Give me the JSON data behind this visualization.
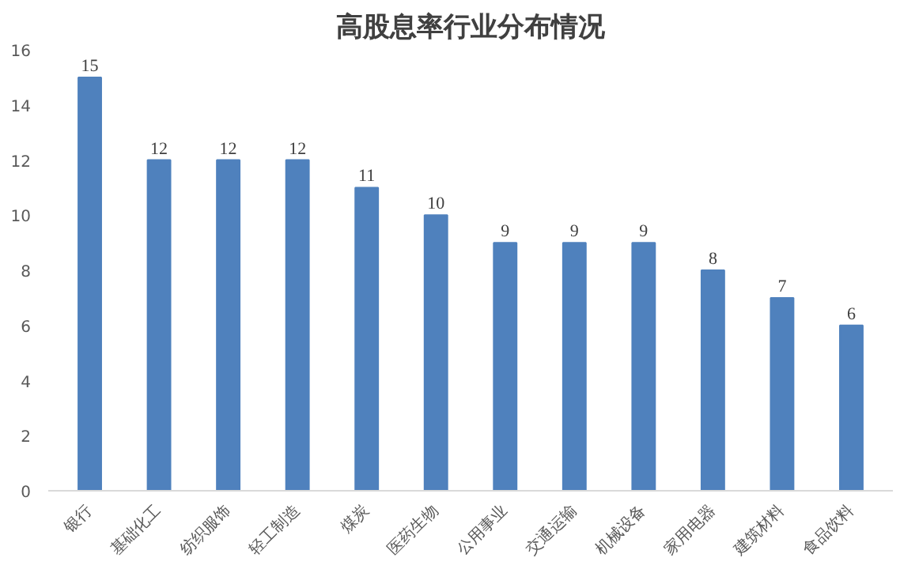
{
  "chart_data": {
    "type": "bar",
    "title": "高股息率行业分布情况",
    "categories": [
      "银行",
      "基础化工",
      "纺织服饰",
      "轻工制造",
      "煤炭",
      "医药生物",
      "公用事业",
      "交通运输",
      "机械设备",
      "家用电器",
      "建筑材料",
      "食品饮料"
    ],
    "values": [
      15,
      12,
      12,
      12,
      11,
      10,
      9,
      9,
      9,
      8,
      7,
      6
    ],
    "color": "#4f81bd",
    "ylim": [
      0,
      16
    ],
    "yticks": [
      0,
      2,
      4,
      6,
      8,
      10,
      12,
      14,
      16
    ],
    "grid": false,
    "data_labels": true
  }
}
